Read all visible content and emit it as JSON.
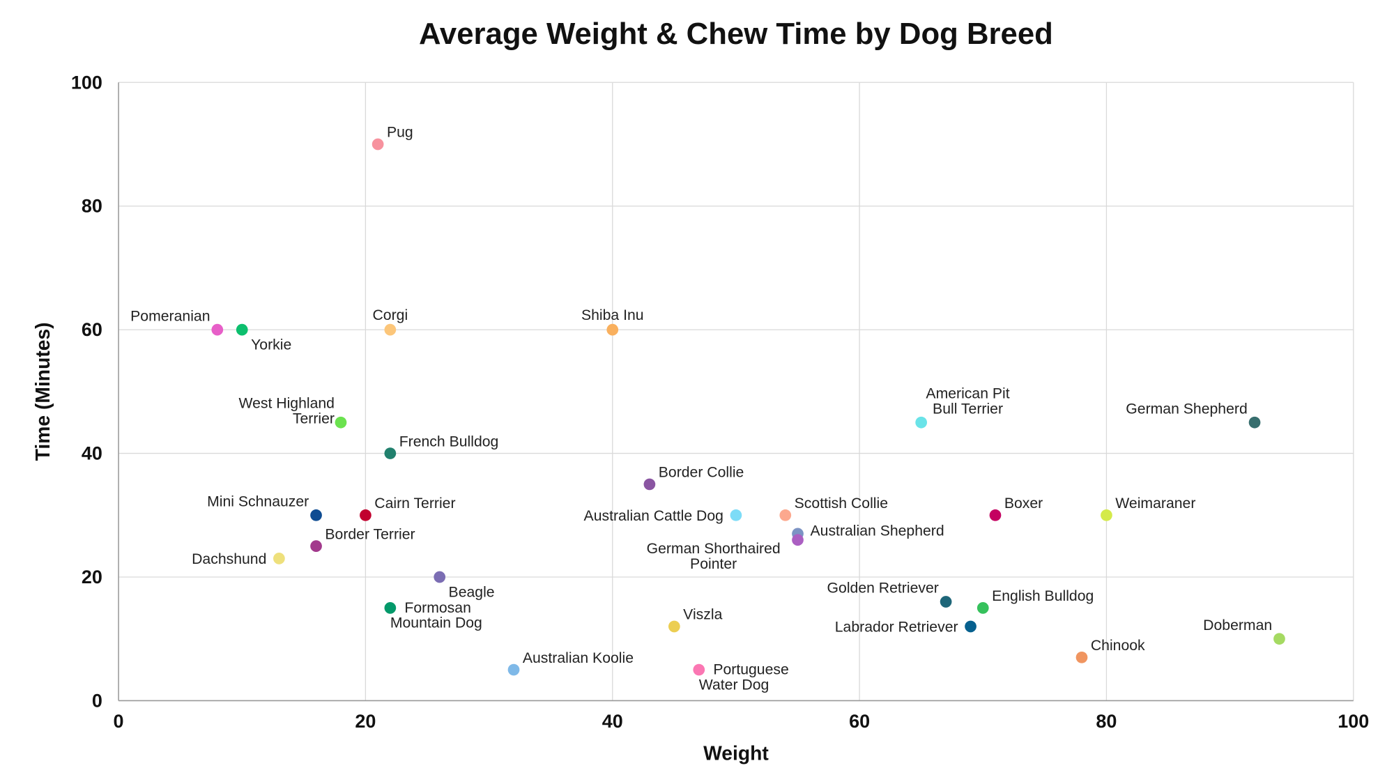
{
  "chart_data": {
    "type": "scatter",
    "title": "Average Weight & Chew Time by Dog Breed",
    "xlabel": "Weight",
    "ylabel": "Time (Minutes)",
    "xlim": [
      0,
      100
    ],
    "ylim": [
      0,
      100
    ],
    "xticks": [
      "0",
      "20",
      "40",
      "60",
      "80",
      "100"
    ],
    "yticks": [
      "0",
      "20",
      "40",
      "60",
      "80",
      "100"
    ],
    "grid": true,
    "legend": "none",
    "points": [
      {
        "label": "Pomeranian",
        "x": 8,
        "y": 60,
        "color": "#e75fc8",
        "pos": "tl"
      },
      {
        "label": "Yorkie",
        "x": 10,
        "y": 60,
        "color": "#0dbf6e",
        "pos": "br"
      },
      {
        "label": "Pug",
        "x": 21,
        "y": 90,
        "color": "#f7929e",
        "pos": "tr"
      },
      {
        "label": "Corgi",
        "x": 22,
        "y": 60,
        "color": "#fcc67a",
        "pos": "t"
      },
      {
        "label": "Shiba Inu",
        "x": 40,
        "y": 60,
        "color": "#f9b05e",
        "pos": "t"
      },
      {
        "label": "West Highland Terrier",
        "x": 18,
        "y": 45,
        "color": "#6be24f",
        "pos": "l2"
      },
      {
        "label": "French Bulldog",
        "x": 22,
        "y": 40,
        "color": "#21806d",
        "pos": "tr"
      },
      {
        "label": "Mini Schnauzer",
        "x": 16,
        "y": 30,
        "color": "#0e4c92",
        "pos": "tl"
      },
      {
        "label": "Cairn Terrier",
        "x": 20,
        "y": 30,
        "color": "#c1002e",
        "pos": "tr"
      },
      {
        "label": "Border Terrier",
        "x": 16,
        "y": 25,
        "color": "#a2398c",
        "pos": "tr"
      },
      {
        "label": "Dachshund",
        "x": 13,
        "y": 23,
        "color": "#eee07c",
        "pos": "l"
      },
      {
        "label": "Beagle",
        "x": 26,
        "y": 20,
        "color": "#7b6db3",
        "pos": "br"
      },
      {
        "label": "Formosan Mountain Dog",
        "x": 22,
        "y": 15,
        "color": "#03996a",
        "pos": "r2"
      },
      {
        "label": "Australian Koolie",
        "x": 32,
        "y": 5,
        "color": "#7fb9e8",
        "pos": "tr"
      },
      {
        "label": "Border Collie",
        "x": 43,
        "y": 35,
        "color": "#8a55a2",
        "pos": "tr"
      },
      {
        "label": "Australian Cattle Dog",
        "x": 50,
        "y": 30,
        "color": "#7ddcf7",
        "pos": "l"
      },
      {
        "label": "Scottish Collie",
        "x": 54,
        "y": 30,
        "color": "#fca88e",
        "pos": "tr"
      },
      {
        "label": "Australian Shepherd",
        "x": 55,
        "y": 27,
        "color": "#7c93c4",
        "pos": "r"
      },
      {
        "label": "German Shorthaired Pointer",
        "x": 55,
        "y": 26,
        "color": "#ab5fc2",
        "pos": "bl2"
      },
      {
        "label": "Viszla",
        "x": 45,
        "y": 12,
        "color": "#ecce52",
        "pos": "tr"
      },
      {
        "label": "Portuguese Water Dog",
        "x": 47,
        "y": 5,
        "color": "#fb77b3",
        "pos": "r2"
      },
      {
        "label": "American Pit Bull Terrier",
        "x": 65,
        "y": 45,
        "color": "#6ae3e8",
        "pos": "t2"
      },
      {
        "label": "German Shepherd",
        "x": 92,
        "y": 45,
        "color": "#376e6e",
        "pos": "tl"
      },
      {
        "label": "Boxer",
        "x": 71,
        "y": 30,
        "color": "#c40060",
        "pos": "tr"
      },
      {
        "label": "Weimaraner",
        "x": 80,
        "y": 30,
        "color": "#d4ea4a",
        "pos": "tr"
      },
      {
        "label": "Golden Retriever",
        "x": 67,
        "y": 16,
        "color": "#1e6679",
        "pos": "tl"
      },
      {
        "label": "English Bulldog",
        "x": 70,
        "y": 15,
        "color": "#36c15c",
        "pos": "tr"
      },
      {
        "label": "Labrador Retriever",
        "x": 69,
        "y": 12,
        "color": "#06608e",
        "pos": "l"
      },
      {
        "label": "Chinook",
        "x": 78,
        "y": 7,
        "color": "#f09560",
        "pos": "tr"
      },
      {
        "label": "Doberman",
        "x": 94,
        "y": 10,
        "color": "#a5da62",
        "pos": "tl"
      }
    ]
  }
}
